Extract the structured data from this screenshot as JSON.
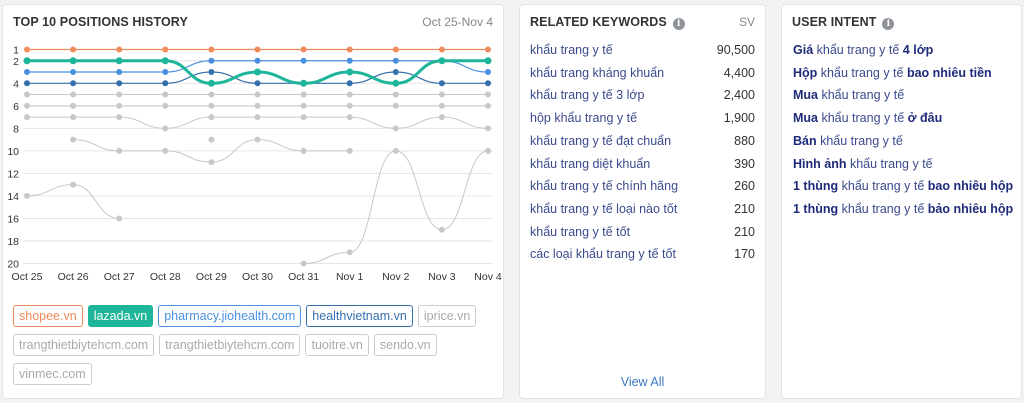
{
  "history": {
    "title": "TOP 10 POSITIONS HISTORY",
    "date_range": "Oct 25-Nov 4",
    "legend": [
      {
        "label": "shopee.vn",
        "color": "#ef8a5c",
        "style": "outline"
      },
      {
        "label": "lazada.vn",
        "color": "#1fb59a",
        "style": "filled"
      },
      {
        "label": "pharmacy.jiohealth.com",
        "color": "#4a8fe0",
        "style": "outline"
      },
      {
        "label": "healthvietnam.vn",
        "color": "#356fab",
        "style": "outline"
      },
      {
        "label": "iprice.vn",
        "color": "#cccccc",
        "style": "muted"
      },
      {
        "label": "trangthietbiytehcm.com",
        "color": "#cccccc",
        "style": "muted"
      },
      {
        "label": "trangthietbiytehcm.com",
        "color": "#cccccc",
        "style": "muted"
      },
      {
        "label": "tuoitre.vn",
        "color": "#cccccc",
        "style": "muted"
      },
      {
        "label": "sendo.vn",
        "color": "#cccccc",
        "style": "muted"
      },
      {
        "label": "vinmec.com",
        "color": "#cccccc",
        "style": "muted"
      }
    ]
  },
  "chart_data": {
    "type": "line",
    "x": [
      "Oct 25",
      "Oct 26",
      "Oct 27",
      "Oct 28",
      "Oct 29",
      "Oct 30",
      "Oct 31",
      "Nov 1",
      "Nov 2",
      "Nov 3",
      "Nov 4"
    ],
    "yticks": [
      1,
      2,
      4,
      6,
      8,
      10,
      12,
      14,
      16,
      18,
      20
    ],
    "ylim": [
      20,
      1
    ],
    "y_inverted": true,
    "grid": true,
    "series": [
      {
        "name": "shopee.vn",
        "color": "#ef8a5c",
        "width": 1.2,
        "values": [
          1,
          1,
          1,
          1,
          1,
          1,
          1,
          1,
          1,
          1,
          1
        ]
      },
      {
        "name": "pharmacy.jiohealth.com",
        "color": "#4a8fe0",
        "width": 1.2,
        "values": [
          3,
          3,
          3,
          3,
          2,
          2,
          2,
          2,
          2,
          2,
          3
        ]
      },
      {
        "name": "healthvietnam.vn",
        "color": "#356fab",
        "width": 1.2,
        "values": [
          4,
          4,
          4,
          4,
          3,
          4,
          4,
          4,
          3,
          4,
          4
        ]
      },
      {
        "name": "iprice.vn",
        "color": "#c8c8c8",
        "width": 1,
        "values": [
          5,
          5,
          5,
          5,
          5,
          5,
          5,
          5,
          5,
          5,
          5
        ]
      },
      {
        "name": "trangthietbiytehcm.com",
        "color": "#c8c8c8",
        "width": 1,
        "values": [
          6,
          6,
          6,
          6,
          6,
          6,
          6,
          6,
          6,
          6,
          6
        ]
      },
      {
        "name": "trangthietbiytehcm.com",
        "color": "#c8c8c8",
        "width": 1,
        "values": [
          7,
          7,
          7,
          8,
          7,
          7,
          7,
          7,
          8,
          7,
          8
        ]
      },
      {
        "name": "tuoitre.vn",
        "color": "#c8c8c8",
        "width": 1,
        "values": [
          null,
          9,
          10,
          10,
          11,
          9,
          10,
          10,
          null,
          null,
          null
        ]
      },
      {
        "name": "sendo.vn",
        "color": "#c8c8c8",
        "width": 1,
        "values": [
          14,
          13,
          16,
          null,
          9,
          null,
          null,
          null,
          null,
          null,
          null
        ]
      },
      {
        "name": "vinmec.com",
        "color": "#c8c8c8",
        "width": 1,
        "values": [
          null,
          null,
          null,
          null,
          null,
          null,
          20,
          19,
          10,
          17,
          10
        ]
      },
      {
        "name": "lazada.vn",
        "color": "#1fb59a",
        "width": 3,
        "values": [
          2,
          2,
          2,
          2,
          4,
          3,
          4,
          3,
          4,
          2,
          2
        ]
      }
    ]
  },
  "keywords": {
    "title": "RELATED KEYWORDS",
    "sv_label": "SV",
    "view_all": "View All",
    "rows": [
      {
        "keyword": "khẩu trang y tế",
        "sv": "90,500"
      },
      {
        "keyword": "khẩu trang kháng khuẩn",
        "sv": "4,400"
      },
      {
        "keyword": "khẩu trang y tế 3 lớp",
        "sv": "2,400"
      },
      {
        "keyword": "hộp khẩu trang y tế",
        "sv": "1,900"
      },
      {
        "keyword": "khẩu trang y tế đạt chuẩn",
        "sv": "880"
      },
      {
        "keyword": "khẩu trang diệt khuẩn",
        "sv": "390"
      },
      {
        "keyword": "khẩu trang y tế chính hãng",
        "sv": "260"
      },
      {
        "keyword": "khẩu trang y tế loại nào tốt",
        "sv": "210"
      },
      {
        "keyword": "khẩu trang y tế tốt",
        "sv": "210"
      },
      {
        "keyword": "các loại khẩu trang y tế tốt",
        "sv": "170"
      }
    ]
  },
  "intent": {
    "title": "USER INTENT",
    "rows": [
      {
        "prefix": "Giá",
        "middle": " khẩu trang y tế ",
        "suffix": "4 lớp"
      },
      {
        "prefix": "Hộp",
        "middle": " khẩu trang y tế ",
        "suffix": "bao nhiêu tiền"
      },
      {
        "prefix": "Mua",
        "middle": " khẩu trang y tế",
        "suffix": ""
      },
      {
        "prefix": "Mua",
        "middle": " khẩu trang y tế ",
        "suffix": "ở đâu"
      },
      {
        "prefix": "Bán",
        "middle": " khẩu trang y tế",
        "suffix": ""
      },
      {
        "prefix": "Hình ảnh",
        "middle": " khẩu trang y tế",
        "suffix": ""
      },
      {
        "prefix": "1 thùng",
        "middle": " khẩu trang y tế ",
        "suffix": "bao nhiêu hộp"
      },
      {
        "prefix": "1 thùng",
        "middle": " khẩu trang y tế ",
        "suffix": "bảo nhiêu hộp"
      }
    ]
  }
}
